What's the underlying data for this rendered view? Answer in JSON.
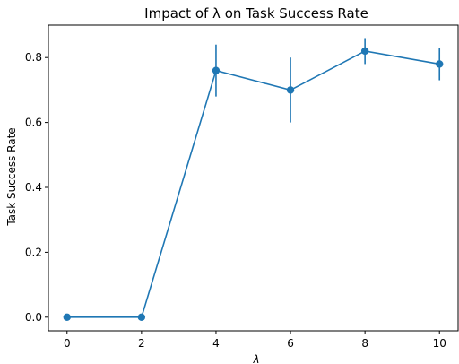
{
  "chart_data": {
    "type": "line",
    "title": "Impact of λ on Task Success Rate",
    "xlabel": "λ",
    "ylabel": "Task Success Rate",
    "x": [
      0,
      2,
      4,
      6,
      8,
      10
    ],
    "series": [
      {
        "values": [
          0.0,
          0.0,
          0.76,
          0.7,
          0.82,
          0.78
        ],
        "error": [
          0.0,
          0.0,
          0.08,
          0.1,
          0.04,
          0.05
        ],
        "color": "#1f77b4"
      }
    ],
    "xticks": [
      0,
      2,
      4,
      6,
      8,
      10
    ],
    "xtick_labels": [
      "0",
      "2",
      "4",
      "6",
      "8",
      "10"
    ],
    "yticks": [
      0.0,
      0.2,
      0.4,
      0.6,
      0.8
    ],
    "ytick_labels": [
      "0.0",
      "0.2",
      "0.4",
      "0.6",
      "0.8"
    ],
    "xlim": [
      -0.5,
      10.5
    ],
    "ylim": [
      -0.042,
      0.9
    ],
    "grid": false,
    "legend": "none"
  }
}
